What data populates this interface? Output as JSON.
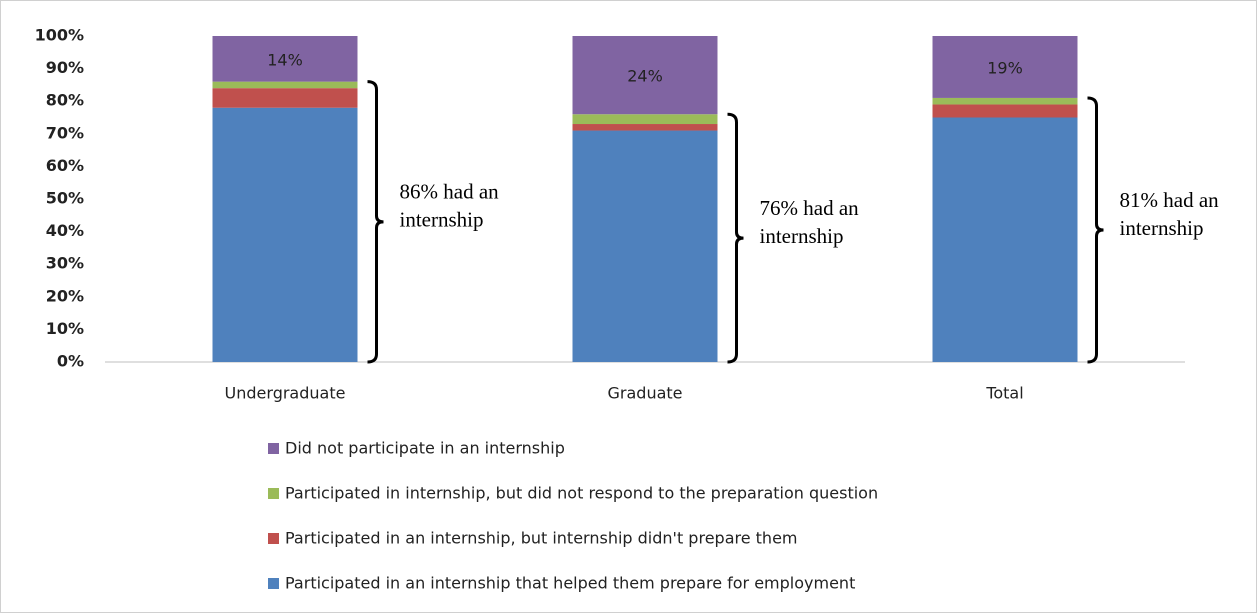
{
  "chart_data": {
    "type": "stacked_bar",
    "categories": [
      "Undergraduate",
      "Graduate",
      "Total"
    ],
    "series": [
      {
        "name": "Participated in an internship that helped them prepare for employment",
        "color": "#4f81bd",
        "values": [
          78,
          71,
          75
        ]
      },
      {
        "name": "Participated in an internship, but internship didn't prepare them",
        "color": "#c0504d",
        "values": [
          6,
          2,
          4
        ]
      },
      {
        "name": "Participated in internship, but did not respond to the preparation question",
        "color": "#9bbb59",
        "values": [
          2,
          3,
          2
        ]
      },
      {
        "name": "Did not participate in an internship",
        "color": "#8064a2",
        "values": [
          14,
          24,
          19
        ],
        "value_labels": [
          "14%",
          "24%",
          "19%"
        ]
      }
    ],
    "ylim": [
      0,
      100
    ],
    "yticks": [
      {
        "value": 0,
        "label": "0%"
      },
      {
        "value": 10,
        "label": "10%"
      },
      {
        "value": 20,
        "label": "20%"
      },
      {
        "value": 30,
        "label": "30%"
      },
      {
        "value": 40,
        "label": "40%"
      },
      {
        "value": 50,
        "label": "50%"
      },
      {
        "value": 60,
        "label": "60%"
      },
      {
        "value": 70,
        "label": "70%"
      },
      {
        "value": 80,
        "label": "80%"
      },
      {
        "value": 90,
        "label": "90%"
      },
      {
        "value": 100,
        "label": "100%"
      }
    ],
    "annotations": [
      {
        "lines": [
          "86% had an",
          "internship"
        ]
      },
      {
        "lines": [
          "76% had an",
          "internship"
        ]
      },
      {
        "lines": [
          "81% had an",
          "internship"
        ]
      }
    ],
    "legend": "bottom"
  }
}
